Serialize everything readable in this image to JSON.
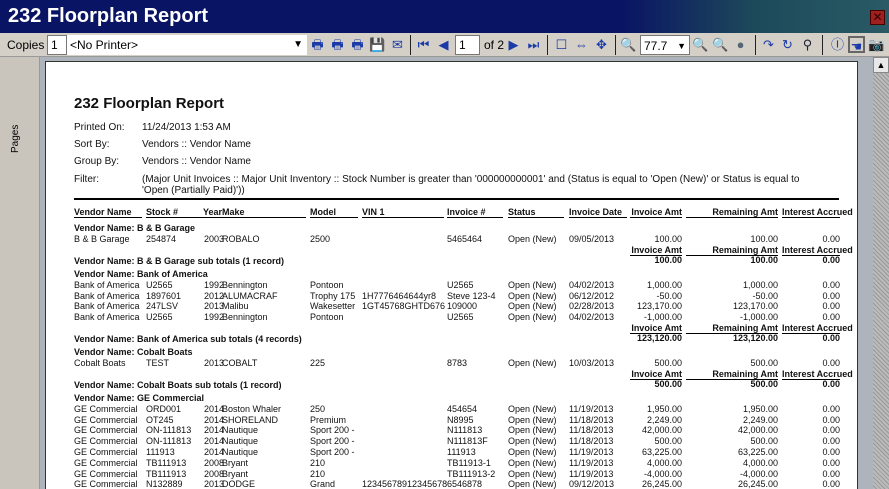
{
  "window": {
    "title": "232 Floorplan Report",
    "close_icon": "close-icon"
  },
  "toolbar": {
    "copies_label": "Copies",
    "copies_value": "1",
    "printer": "<No Printer>",
    "page_value": "1",
    "page_of": "of 2",
    "zoom_value": "77.7"
  },
  "sidebar": {
    "label": "Pages"
  },
  "report": {
    "title": "232 Floorplan Report",
    "meta": [
      {
        "label": "Printed On:",
        "value": "11/24/2013 1:53 AM"
      },
      {
        "label": "Sort By:",
        "value": "Vendors :: Vendor Name"
      },
      {
        "label": "Group By:",
        "value": "Vendors :: Vendor Name"
      },
      {
        "label": "Filter:",
        "value": "(Major Unit Invoices :: Major Unit Inventory :: Stock Number is greater than '000000000001' and (Status is equal to 'Open (New)' or Status is equal to",
        "value2": "'Open (Partially Paid)'))"
      }
    ],
    "columns": [
      "Vendor Name",
      "Stock #",
      "Year",
      "Make",
      "Model",
      "VIN 1",
      "Invoice #",
      "Status",
      "Invoice Date",
      "Invoice Amt",
      "Remaining Amt",
      "Interest Accrued"
    ],
    "summary_headers": [
      "Invoice Amt",
      "Remaining Amt",
      "Interest Accrued"
    ],
    "groups": [
      {
        "header": "Vendor Name: B & B Garage",
        "rows": [
          [
            "B & B Garage",
            "254874",
            "2003",
            "ROBALO",
            "2500",
            "",
            "5465464",
            "Open (New)",
            "09/05/2013",
            "100.00",
            "100.00",
            "0.00"
          ]
        ],
        "subtotal_label": "Vendor Name: B & B Garage sub totals (1 record)",
        "totals": [
          "100.00",
          "100.00",
          "0.00"
        ]
      },
      {
        "header": "Vendor Name: Bank of America",
        "rows": [
          [
            "Bank of America",
            "U2565",
            "1992",
            "Bennington",
            "Pontoon",
            "",
            "U2565",
            "Open (New)",
            "04/02/2013",
            "1,000.00",
            "1,000.00",
            "0.00"
          ],
          [
            "Bank of America",
            "1897601",
            "2012",
            "ALUMACRAF",
            "Trophy 175",
            "1H7776464644yr8",
            "Steve 123-4",
            "Open (New)",
            "06/12/2012",
            "-50.00",
            "-50.00",
            "0.00"
          ],
          [
            "Bank of America",
            "247LSV",
            "2013",
            "Malibu",
            "Wakesetter",
            "1GT45768GHTD676",
            "109000",
            "Open (New)",
            "02/28/2013",
            "123,170.00",
            "123,170.00",
            "0.00"
          ],
          [
            "Bank of America",
            "U2565",
            "1992",
            "Bennington",
            "Pontoon",
            "",
            "U2565",
            "Open (New)",
            "04/02/2013",
            "-1,000.00",
            "-1,000.00",
            "0.00"
          ]
        ],
        "subtotal_label": "Vendor Name: Bank of America sub totals (4 records)",
        "totals": [
          "123,120.00",
          "123,120.00",
          "0.00"
        ]
      },
      {
        "header": "Vendor Name: Cobalt Boats",
        "rows": [
          [
            "Cobalt Boats",
            "TEST",
            "2013",
            "COBALT",
            "225",
            "",
            "8783",
            "Open (New)",
            "10/03/2013",
            "500.00",
            "500.00",
            "0.00"
          ]
        ],
        "subtotal_label": "Vendor Name: Cobalt Boats sub totals (1 record)",
        "totals": [
          "500.00",
          "500.00",
          "0.00"
        ]
      },
      {
        "header": "Vendor Name: GE Commercial",
        "rows": [
          [
            "GE Commercial",
            "ORD001",
            "2014",
            "Boston Whaler",
            "250",
            "",
            "454654",
            "Open (New)",
            "11/19/2013",
            "1,950.00",
            "1,950.00",
            "0.00"
          ],
          [
            "GE Commercial",
            "OT245",
            "2014",
            "SHORELAND",
            "Premium",
            "",
            "N8995",
            "Open (New)",
            "11/18/2013",
            "2,249.00",
            "2,249.00",
            "0.00"
          ],
          [
            "GE Commercial",
            "ON-111813",
            "2014",
            "Nautique",
            "Sport 200 -",
            "",
            "N111813",
            "Open (New)",
            "11/18/2013",
            "42,000.00",
            "42,000.00",
            "0.00"
          ],
          [
            "GE Commercial",
            "ON-111813",
            "2014",
            "Nautique",
            "Sport 200 -",
            "",
            "N111813F",
            "Open (New)",
            "11/18/2013",
            "500.00",
            "500.00",
            "0.00"
          ],
          [
            "GE Commercial",
            "111913",
            "2014",
            "Nautique",
            "Sport 200 -",
            "",
            "111913",
            "Open (New)",
            "11/19/2013",
            "63,225.00",
            "63,225.00",
            "0.00"
          ],
          [
            "GE Commercial",
            "TB111913",
            "2008",
            "Bryant",
            "210",
            "",
            "TB11913-1",
            "Open (New)",
            "11/19/2013",
            "4,000.00",
            "4,000.00",
            "0.00"
          ],
          [
            "GE Commercial",
            "TB111913",
            "2008",
            "Bryant",
            "210",
            "",
            "TB111913-2",
            "Open (New)",
            "11/19/2013",
            "-4,000.00",
            "-4,000.00",
            "0.00"
          ],
          [
            "GE Commercial",
            "N132889",
            "2013",
            "DODGE",
            "Grand",
            "12345678912345678",
            "6546878",
            "Open (New)",
            "09/12/2013",
            "26,245.00",
            "26,245.00",
            "0.00"
          ]
        ]
      }
    ]
  }
}
